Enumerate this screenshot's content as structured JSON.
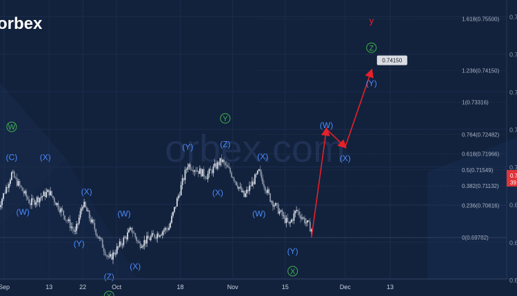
{
  "brand": {
    "logo_text": "orbex",
    "watermark": "orbex.com"
  },
  "colors": {
    "background": "#13223c",
    "wave_blue": "#4a8cff",
    "wave_green": "#3fb34f",
    "projection": "#e8202a",
    "candle_up": "#d8dde6",
    "candle_down": "#8b95a6",
    "price_tag": "#e0333a"
  },
  "chart_data": {
    "type": "candlestick",
    "x_axis": {
      "tick_labels": [
        {
          "label": "Sep",
          "date": "2021-09-01"
        },
        {
          "label": "13",
          "date": "2021-09-13"
        },
        {
          "label": "22",
          "date": "2021-09-22"
        },
        {
          "label": "Oct",
          "date": "2021-10-01"
        },
        {
          "label": "18",
          "date": "2021-10-18"
        },
        {
          "label": "Nov",
          "date": "2021-11-01"
        },
        {
          "label": "15",
          "date": "2021-11-15"
        },
        {
          "label": "Dec",
          "date": "2021-12-01"
        },
        {
          "label": "13",
          "date": "2021-12-13"
        }
      ]
    },
    "y_axis": {
      "range": [
        0.687,
        0.76
      ],
      "visible_labels": [
        "0.7",
        "0.7",
        "0.7",
        "0.7",
        "0.7",
        "0.6",
        "0.6",
        "0.6"
      ],
      "current_price_label": "0.7",
      "current_price_sub": "39"
    },
    "price_path": [
      {
        "date": "2021-08-30",
        "price": 0.7045
      },
      {
        "date": "2021-09-03",
        "price": 0.7145
      },
      {
        "date": "2021-09-08",
        "price": 0.7068
      },
      {
        "date": "2021-09-13",
        "price": 0.7098
      },
      {
        "date": "2021-09-20",
        "price": 0.699
      },
      {
        "date": "2021-09-22",
        "price": 0.7068
      },
      {
        "date": "2021-09-29",
        "price": 0.692
      },
      {
        "date": "2021-10-05",
        "price": 0.7
      },
      {
        "date": "2021-10-07",
        "price": 0.696
      },
      {
        "date": "2021-10-15",
        "price": 0.7005
      },
      {
        "date": "2021-10-20",
        "price": 0.717
      },
      {
        "date": "2021-10-25",
        "price": 0.714
      },
      {
        "date": "2021-10-29",
        "price": 0.718
      },
      {
        "date": "2021-11-01",
        "price": 0.714
      },
      {
        "date": "2021-11-04",
        "price": 0.7085
      },
      {
        "date": "2021-11-08",
        "price": 0.715
      },
      {
        "date": "2021-11-11",
        "price": 0.708
      },
      {
        "date": "2021-11-16",
        "price": 0.701
      },
      {
        "date": "2021-11-18",
        "price": 0.705
      },
      {
        "date": "2021-11-22",
        "price": 0.7
      }
    ],
    "projection": [
      {
        "date": "2021-11-22",
        "price": 0.6978
      },
      {
        "date": "2021-11-26",
        "price": 0.7262
      },
      {
        "date": "2021-12-01",
        "price": 0.7215
      },
      {
        "date": "2021-12-08",
        "price": 0.7415
      }
    ],
    "projection_target_label": "0.74150",
    "fib_levels": [
      {
        "label": "1.618(0.75500)",
        "price": 0.755
      },
      {
        "label": "1.236(0.74150)",
        "price": 0.7415
      },
      {
        "label": "1(0.73316)",
        "price": 0.7332
      },
      {
        "label": "0.764(0.72482)",
        "price": 0.7248
      },
      {
        "label": "0.618(0.71966)",
        "price": 0.7197
      },
      {
        "label": "0.5(0.71549)",
        "price": 0.7155
      },
      {
        "label": "0.382(0.71132)",
        "price": 0.7113
      },
      {
        "label": "0.236(0.70616)",
        "price": 0.7062
      },
      {
        "label": "0(0.69782)",
        "price": 0.6978
      }
    ],
    "wave_labels": [
      {
        "text": "W",
        "style": "green-circle",
        "date": "2021-09-03",
        "price": 0.7268
      },
      {
        "text": "(C)",
        "style": "blue",
        "date": "2021-09-03",
        "price": 0.7188
      },
      {
        "text": "(X)",
        "style": "blue",
        "date": "2021-09-12",
        "price": 0.7188
      },
      {
        "text": "(W)",
        "style": "blue",
        "date": "2021-09-06",
        "price": 0.7045
      },
      {
        "text": "(X)",
        "style": "blue",
        "date": "2021-09-23",
        "price": 0.7098
      },
      {
        "text": "(Y)",
        "style": "blue",
        "date": "2021-09-21",
        "price": 0.6962
      },
      {
        "text": "(W)",
        "style": "blue",
        "date": "2021-10-03",
        "price": 0.704
      },
      {
        "text": "(Z)",
        "style": "blue",
        "date": "2021-09-29",
        "price": 0.6875
      },
      {
        "text": "X",
        "style": "green-circle",
        "date": "2021-09-29",
        "price": 0.6825
      },
      {
        "text": "(X)",
        "style": "blue",
        "date": "2021-10-06",
        "price": 0.6902
      },
      {
        "text": "(Y)",
        "style": "blue",
        "date": "2021-10-20",
        "price": 0.7215
      },
      {
        "text": "Y",
        "style": "green-circle",
        "date": "2021-10-30",
        "price": 0.729
      },
      {
        "text": "(Z)",
        "style": "blue",
        "date": "2021-10-30",
        "price": 0.7222
      },
      {
        "text": "(X)",
        "style": "blue",
        "date": "2021-10-28",
        "price": 0.7095
      },
      {
        "text": "(X)",
        "style": "blue",
        "date": "2021-11-09",
        "price": 0.719
      },
      {
        "text": "(W)",
        "style": "blue",
        "date": "2021-11-08",
        "price": 0.704
      },
      {
        "text": "(Y)",
        "style": "blue",
        "date": "2021-11-17",
        "price": 0.6942
      },
      {
        "text": "X",
        "style": "green-circle",
        "date": "2021-11-17",
        "price": 0.689
      },
      {
        "text": "(W)",
        "style": "blue",
        "date": "2021-11-26",
        "price": 0.7272
      },
      {
        "text": "(X)",
        "style": "blue",
        "date": "2021-12-01",
        "price": 0.7185
      },
      {
        "text": "(Y)",
        "style": "blue",
        "date": "2021-12-08",
        "price": 0.7382
      },
      {
        "text": "Z",
        "style": "green-circle",
        "date": "2021-12-08",
        "price": 0.7475
      },
      {
        "text": "y",
        "style": "red",
        "date": "2021-12-08",
        "price": 0.7545
      }
    ]
  }
}
